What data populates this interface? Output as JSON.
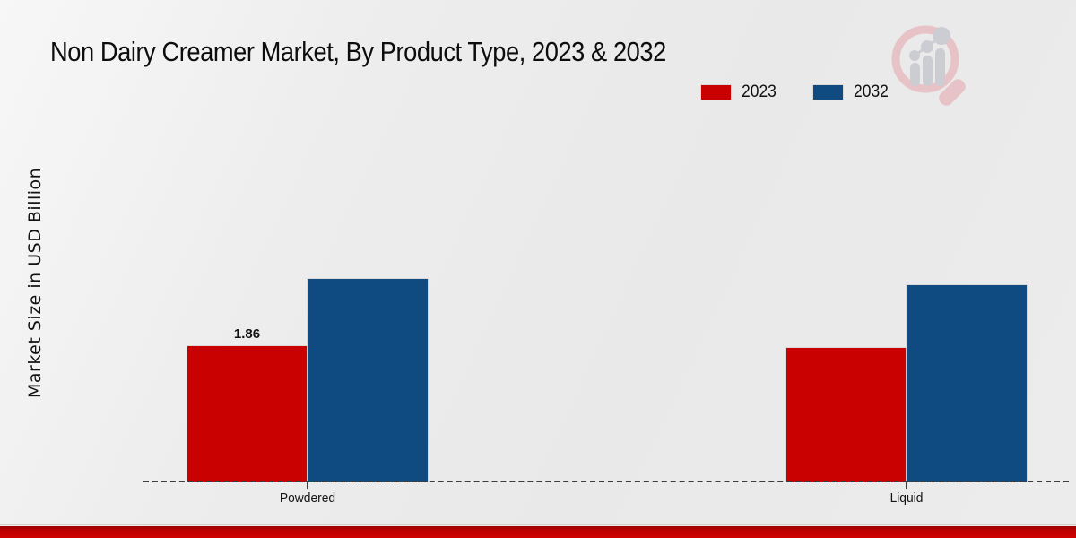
{
  "header": {
    "title": "Non Dairy Creamer Market, By Product Type, 2023 & 2032"
  },
  "legend": [
    {
      "label": "2023",
      "color": "#c90101"
    },
    {
      "label": "2032",
      "color": "#0f4a80"
    }
  ],
  "y_axis": {
    "label": "Market Size in USD Billion"
  },
  "chart_data": {
    "type": "bar",
    "title": "Non Dairy Creamer Market, By Product Type, 2023 & 2032",
    "categories": [
      "Powdered",
      "Liquid"
    ],
    "series": [
      {
        "name": "2023",
        "color": "#c90101",
        "values": [
          1.86,
          1.84
        ],
        "value_labels": [
          "1.86",
          ""
        ]
      },
      {
        "name": "2032",
        "color": "#0f4a80",
        "values": [
          2.78,
          2.7
        ],
        "value_labels": [
          "",
          ""
        ]
      }
    ],
    "xlabel": "",
    "ylabel": "Market Size in USD Billion",
    "ylim": [
      0,
      3.2
    ],
    "grid": false,
    "legend_position": "top-right",
    "baseline_style": "dashed",
    "value_label_shown": "1.86"
  },
  "branding": {
    "logo_name": "market-research-magnifier-logo"
  },
  "footer": {
    "accent_color": "#c00000"
  }
}
